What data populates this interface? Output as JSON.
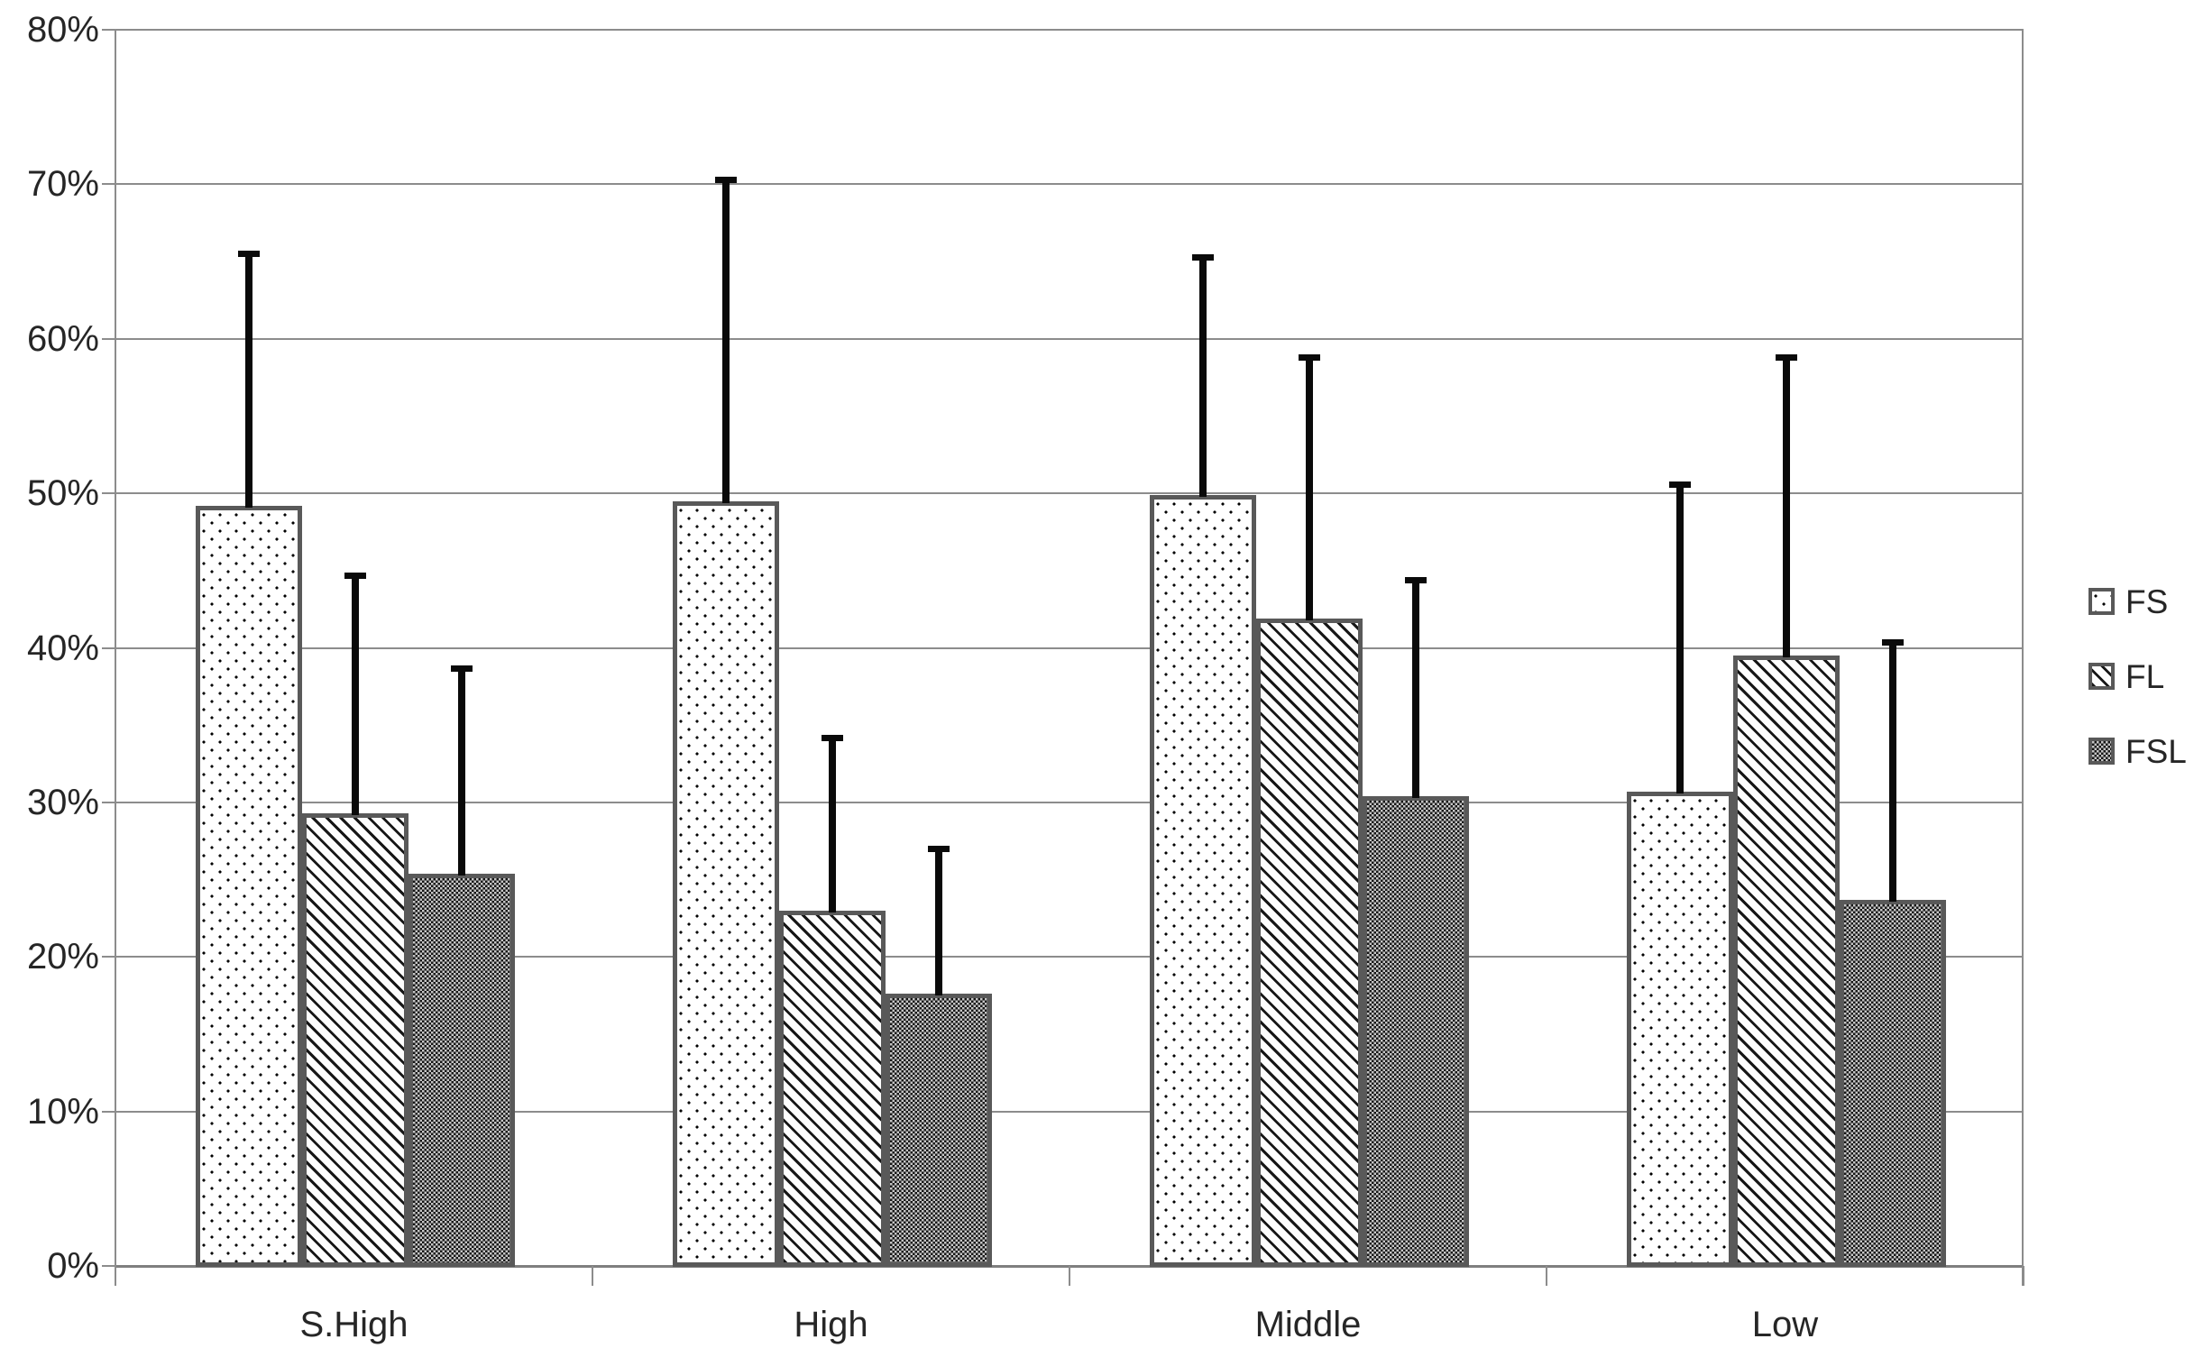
{
  "chart_data": {
    "type": "bar",
    "title": "",
    "categories": [
      "S.High",
      "High",
      "Middle",
      "Low"
    ],
    "series": [
      {
        "name": "FS",
        "pattern": "dotted",
        "values": [
          49.2,
          49.5,
          49.9,
          30.7
        ],
        "error_bar_tops": [
          65.5,
          70.3,
          65.3,
          50.6
        ]
      },
      {
        "name": "FL",
        "pattern": "diagonal-hatch",
        "values": [
          29.3,
          23.0,
          41.9,
          39.5
        ],
        "error_bar_tops": [
          44.7,
          34.2,
          58.8,
          58.8
        ]
      },
      {
        "name": "FSL",
        "pattern": "checkerboard",
        "values": [
          25.4,
          17.6,
          30.4,
          23.7
        ],
        "error_bar_tops": [
          38.7,
          27.0,
          44.4,
          40.4
        ]
      }
    ],
    "ylim": [
      0,
      80
    ],
    "ytick_step": 10,
    "ytick_labels": [
      "0%",
      "10%",
      "20%",
      "30%",
      "40%",
      "50%",
      "60%",
      "70%",
      "80%"
    ],
    "grid": true,
    "legend_position": "right",
    "error_bars": "upper-only"
  },
  "colors": {
    "background": "#ffffff",
    "gridline": "#8c8c8c",
    "bar_border": "#595959",
    "error_bar": "#0a0a0a",
    "text": "#262626"
  }
}
